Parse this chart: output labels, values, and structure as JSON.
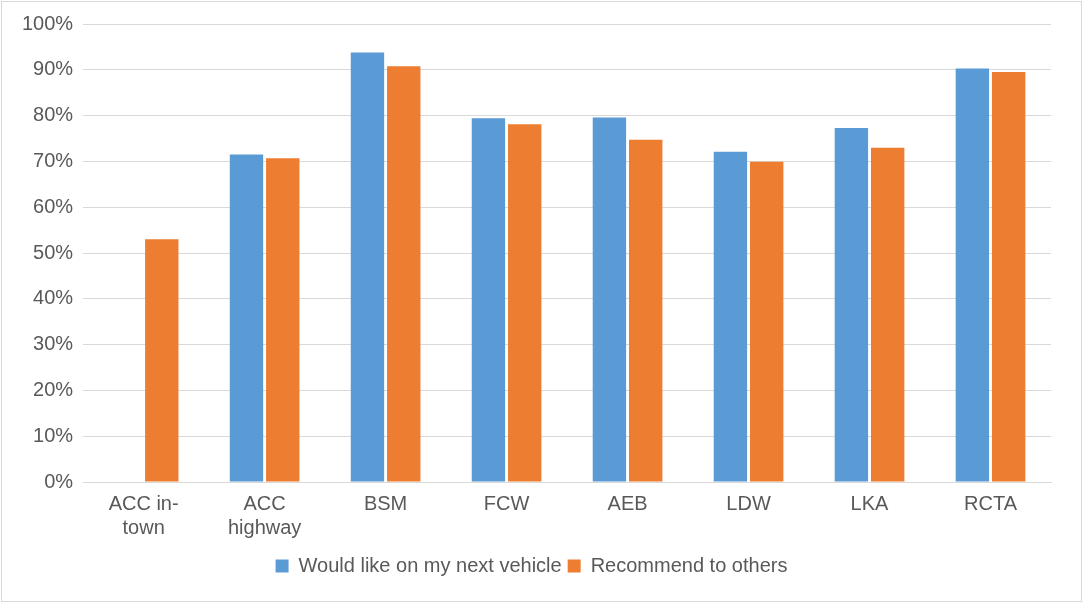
{
  "chart_data": {
    "type": "bar",
    "categories": [
      "ACC in-town",
      "ACC highway",
      "BSM",
      "FCW",
      "AEB",
      "LDW",
      "LKA",
      "RCTA"
    ],
    "series": [
      {
        "name": "Would like on my next vehicle",
        "color": "#5b9bd5",
        "values": [
          null,
          71.5,
          93.8,
          79.4,
          79.6,
          72.1,
          77.3,
          90.3
        ]
      },
      {
        "name": "Recommend to others",
        "color": "#ed7d31",
        "values": [
          53.0,
          70.7,
          90.8,
          78.1,
          74.7,
          69.9,
          73.0,
          89.5
        ]
      }
    ],
    "ylim": [
      0,
      100
    ],
    "yticks": [
      {
        "value": 0,
        "label": "0%"
      },
      {
        "value": 10,
        "label": "10%"
      },
      {
        "value": 20,
        "label": "20%"
      },
      {
        "value": 30,
        "label": "30%"
      },
      {
        "value": 40,
        "label": "40%"
      },
      {
        "value": 50,
        "label": "50%"
      },
      {
        "value": 60,
        "label": "60%"
      },
      {
        "value": 70,
        "label": "70%"
      },
      {
        "value": 80,
        "label": "80%"
      },
      {
        "value": 90,
        "label": "90%"
      },
      {
        "value": 100,
        "label": "100%"
      }
    ],
    "grid": "y",
    "legend": "bottom"
  }
}
